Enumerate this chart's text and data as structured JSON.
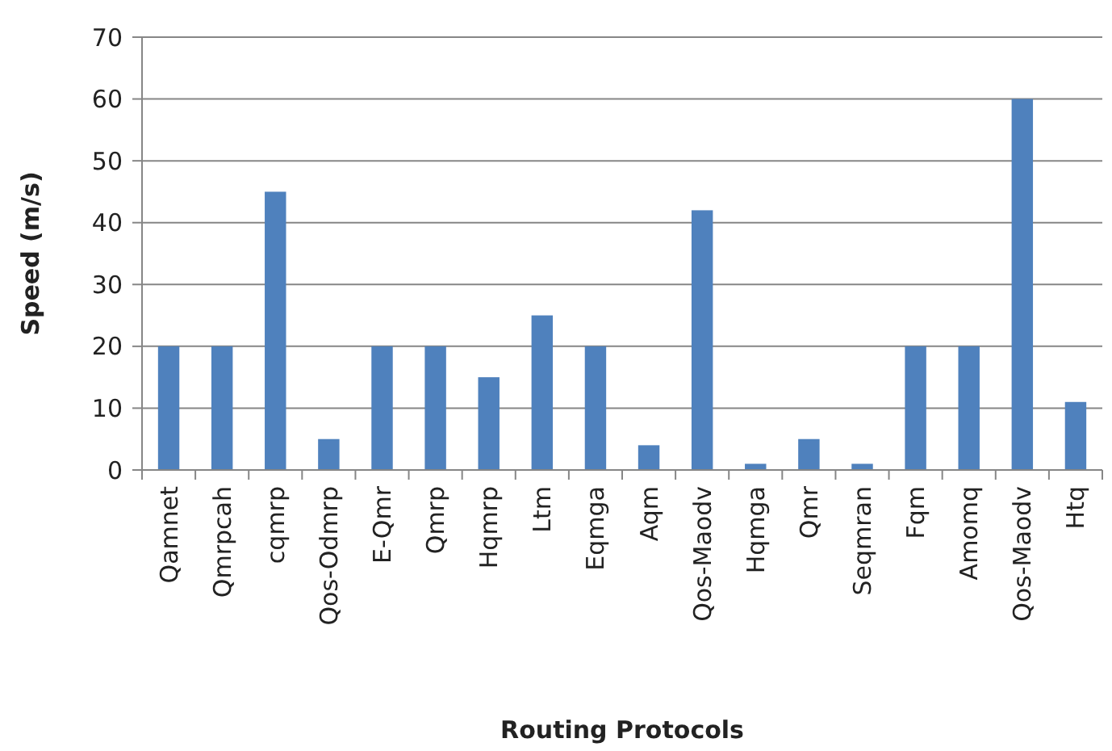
{
  "chart_data": {
    "type": "bar",
    "xlabel": "Routing Protocols",
    "ylabel": "Speed (m/s)",
    "categories": [
      "Qamnet",
      "Qmrpcah",
      "cqmrp",
      "Qos-Odmrp",
      "E-Qmr",
      "Qmrp",
      "Hqmrp",
      "Ltm",
      "Eqmga",
      "Aqm",
      "Qos-Maodv",
      "Hqmga",
      "Qmr",
      "Seqmran",
      "Fqm",
      "Amomq",
      "Qos-Maodv",
      "Htq"
    ],
    "values": [
      20,
      20,
      45,
      5,
      20,
      20,
      15,
      25,
      20,
      4,
      42,
      1,
      5,
      1,
      20,
      20,
      60,
      11
    ],
    "color": "#4f81bd",
    "ylim": [
      0,
      70
    ],
    "yticks": [
      0,
      10,
      20,
      30,
      40,
      50,
      60,
      70
    ],
    "grid": "y"
  }
}
